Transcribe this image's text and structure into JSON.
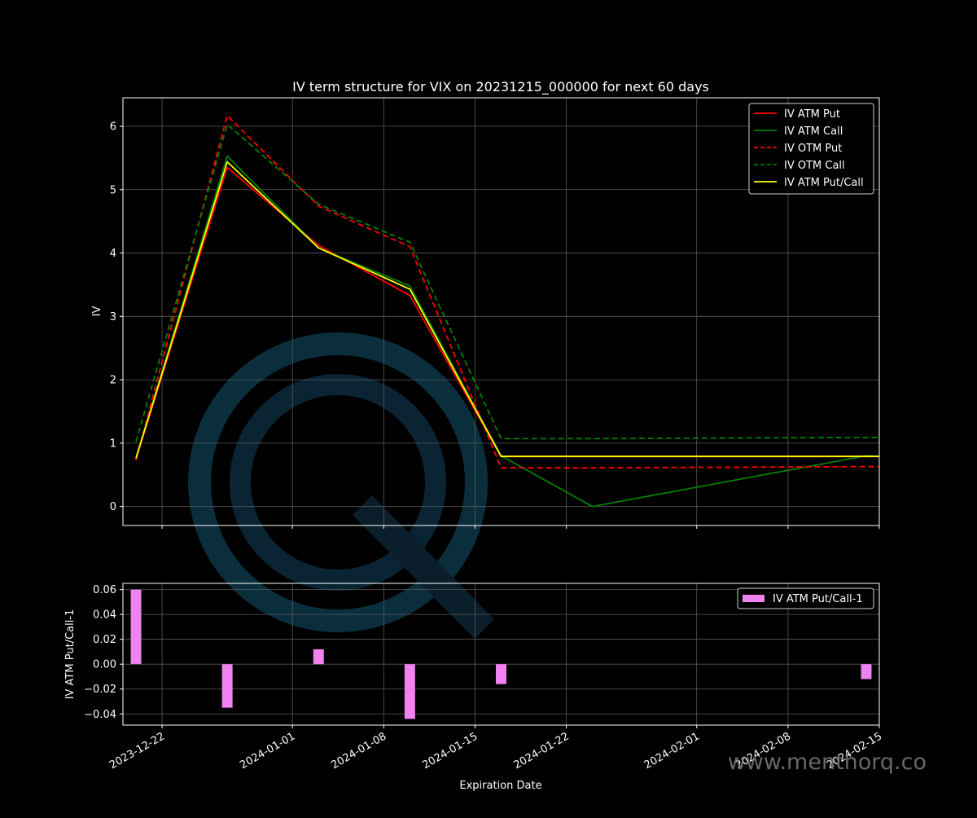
{
  "chart_data": [
    {
      "type": "line",
      "title": "IV term structure for VIX on 20231215_000000 for next 60 days",
      "ylabel": "IV",
      "ylim": [
        -0.3,
        6.45
      ],
      "yticks": [
        0,
        1,
        2,
        3,
        4,
        5,
        6
      ],
      "ytick_labels": [
        "0",
        "1",
        "2",
        "3",
        "4",
        "5",
        "6"
      ],
      "grid": true,
      "legend_position": "top-right",
      "series": [
        {
          "name": "IV ATM Put",
          "style": "solid",
          "color": "#ff0000",
          "x": [
            "2023-12-20",
            "2023-12-27",
            "2024-01-03",
            "2024-01-10",
            "2024-01-17",
            "2024-01-24",
            "2024-02-14",
            "2024-02-15"
          ],
          "values": [
            0.75,
            5.35,
            4.12,
            3.33,
            0.79,
            0.79,
            0.79,
            0.79
          ]
        },
        {
          "name": "IV ATM Call",
          "style": "solid",
          "color": "#008000",
          "x": [
            "2023-12-20",
            "2023-12-27",
            "2024-01-03",
            "2024-01-10",
            "2024-01-17",
            "2024-01-24",
            "2024-02-14",
            "2024-02-15"
          ],
          "values": [
            0.77,
            5.53,
            4.08,
            3.48,
            0.8,
            0.0,
            0.8,
            0.79
          ]
        },
        {
          "name": "IV OTM Put",
          "style": "dashed",
          "color": "#ff0000",
          "x": [
            "2023-12-20",
            "2023-12-27",
            "2024-01-03",
            "2024-01-10",
            "2024-01-17",
            "2024-01-24",
            "2024-02-14",
            "2024-02-15"
          ],
          "values": [
            0.73,
            6.17,
            4.74,
            4.1,
            0.61,
            0.61,
            0.63,
            0.63
          ]
        },
        {
          "name": "IV OTM Call",
          "style": "dashed",
          "color": "#008000",
          "x": [
            "2023-12-20",
            "2023-12-27",
            "2024-01-03",
            "2024-01-10",
            "2024-01-17",
            "2024-01-24",
            "2024-02-14",
            "2024-02-15"
          ],
          "values": [
            1.02,
            6.03,
            4.77,
            4.17,
            1.07,
            1.07,
            1.09,
            1.09
          ]
        },
        {
          "name": "IV ATM Put/Call",
          "style": "solid",
          "color": "#ffff00",
          "x": [
            "2023-12-20",
            "2023-12-27",
            "2024-01-03",
            "2024-01-10",
            "2024-01-17",
            "2024-01-24",
            "2024-02-14",
            "2024-02-15"
          ],
          "values": [
            0.76,
            5.44,
            4.08,
            3.43,
            0.79,
            0.79,
            0.79,
            0.79
          ]
        }
      ]
    },
    {
      "type": "bar",
      "xlabel": "Expiration Date",
      "ylabel": "IV ATM Put/Call-1",
      "ylim": [
        -0.049,
        0.065
      ],
      "yticks": [
        -0.04,
        -0.02,
        0.0,
        0.02,
        0.04,
        0.06
      ],
      "ytick_labels": [
        "−0.04",
        "−0.02",
        "0.00",
        "0.02",
        "0.04",
        "0.06"
      ],
      "grid": true,
      "legend_position": "top-right",
      "series": [
        {
          "name": "IV ATM Put/Call-1",
          "color": "#ee82ee",
          "x": [
            "2023-12-20",
            "2023-12-27",
            "2024-01-03",
            "2024-01-10",
            "2024-01-17",
            "2024-02-14"
          ],
          "values": [
            0.06,
            -0.035,
            0.012,
            -0.044,
            -0.016,
            -0.012
          ]
        }
      ]
    }
  ],
  "x_axis": {
    "min": "2023-12-19",
    "max": "2024-02-15",
    "ticks": [
      "2023-12-22",
      "2024-01-01",
      "2024-01-08",
      "2024-01-15",
      "2024-01-22",
      "2024-02-01",
      "2024-02-08",
      "2024-02-15"
    ]
  },
  "watermark": {
    "text": "www.menthorq.co",
    "logo_icon": "menthorq-q-logo-icon"
  },
  "colors": {
    "background": "#000000",
    "axes": "#ffffff",
    "grid": "#5a5a5a",
    "bar": "#ee82ee",
    "watermark_logo": "#0b2e3d"
  }
}
